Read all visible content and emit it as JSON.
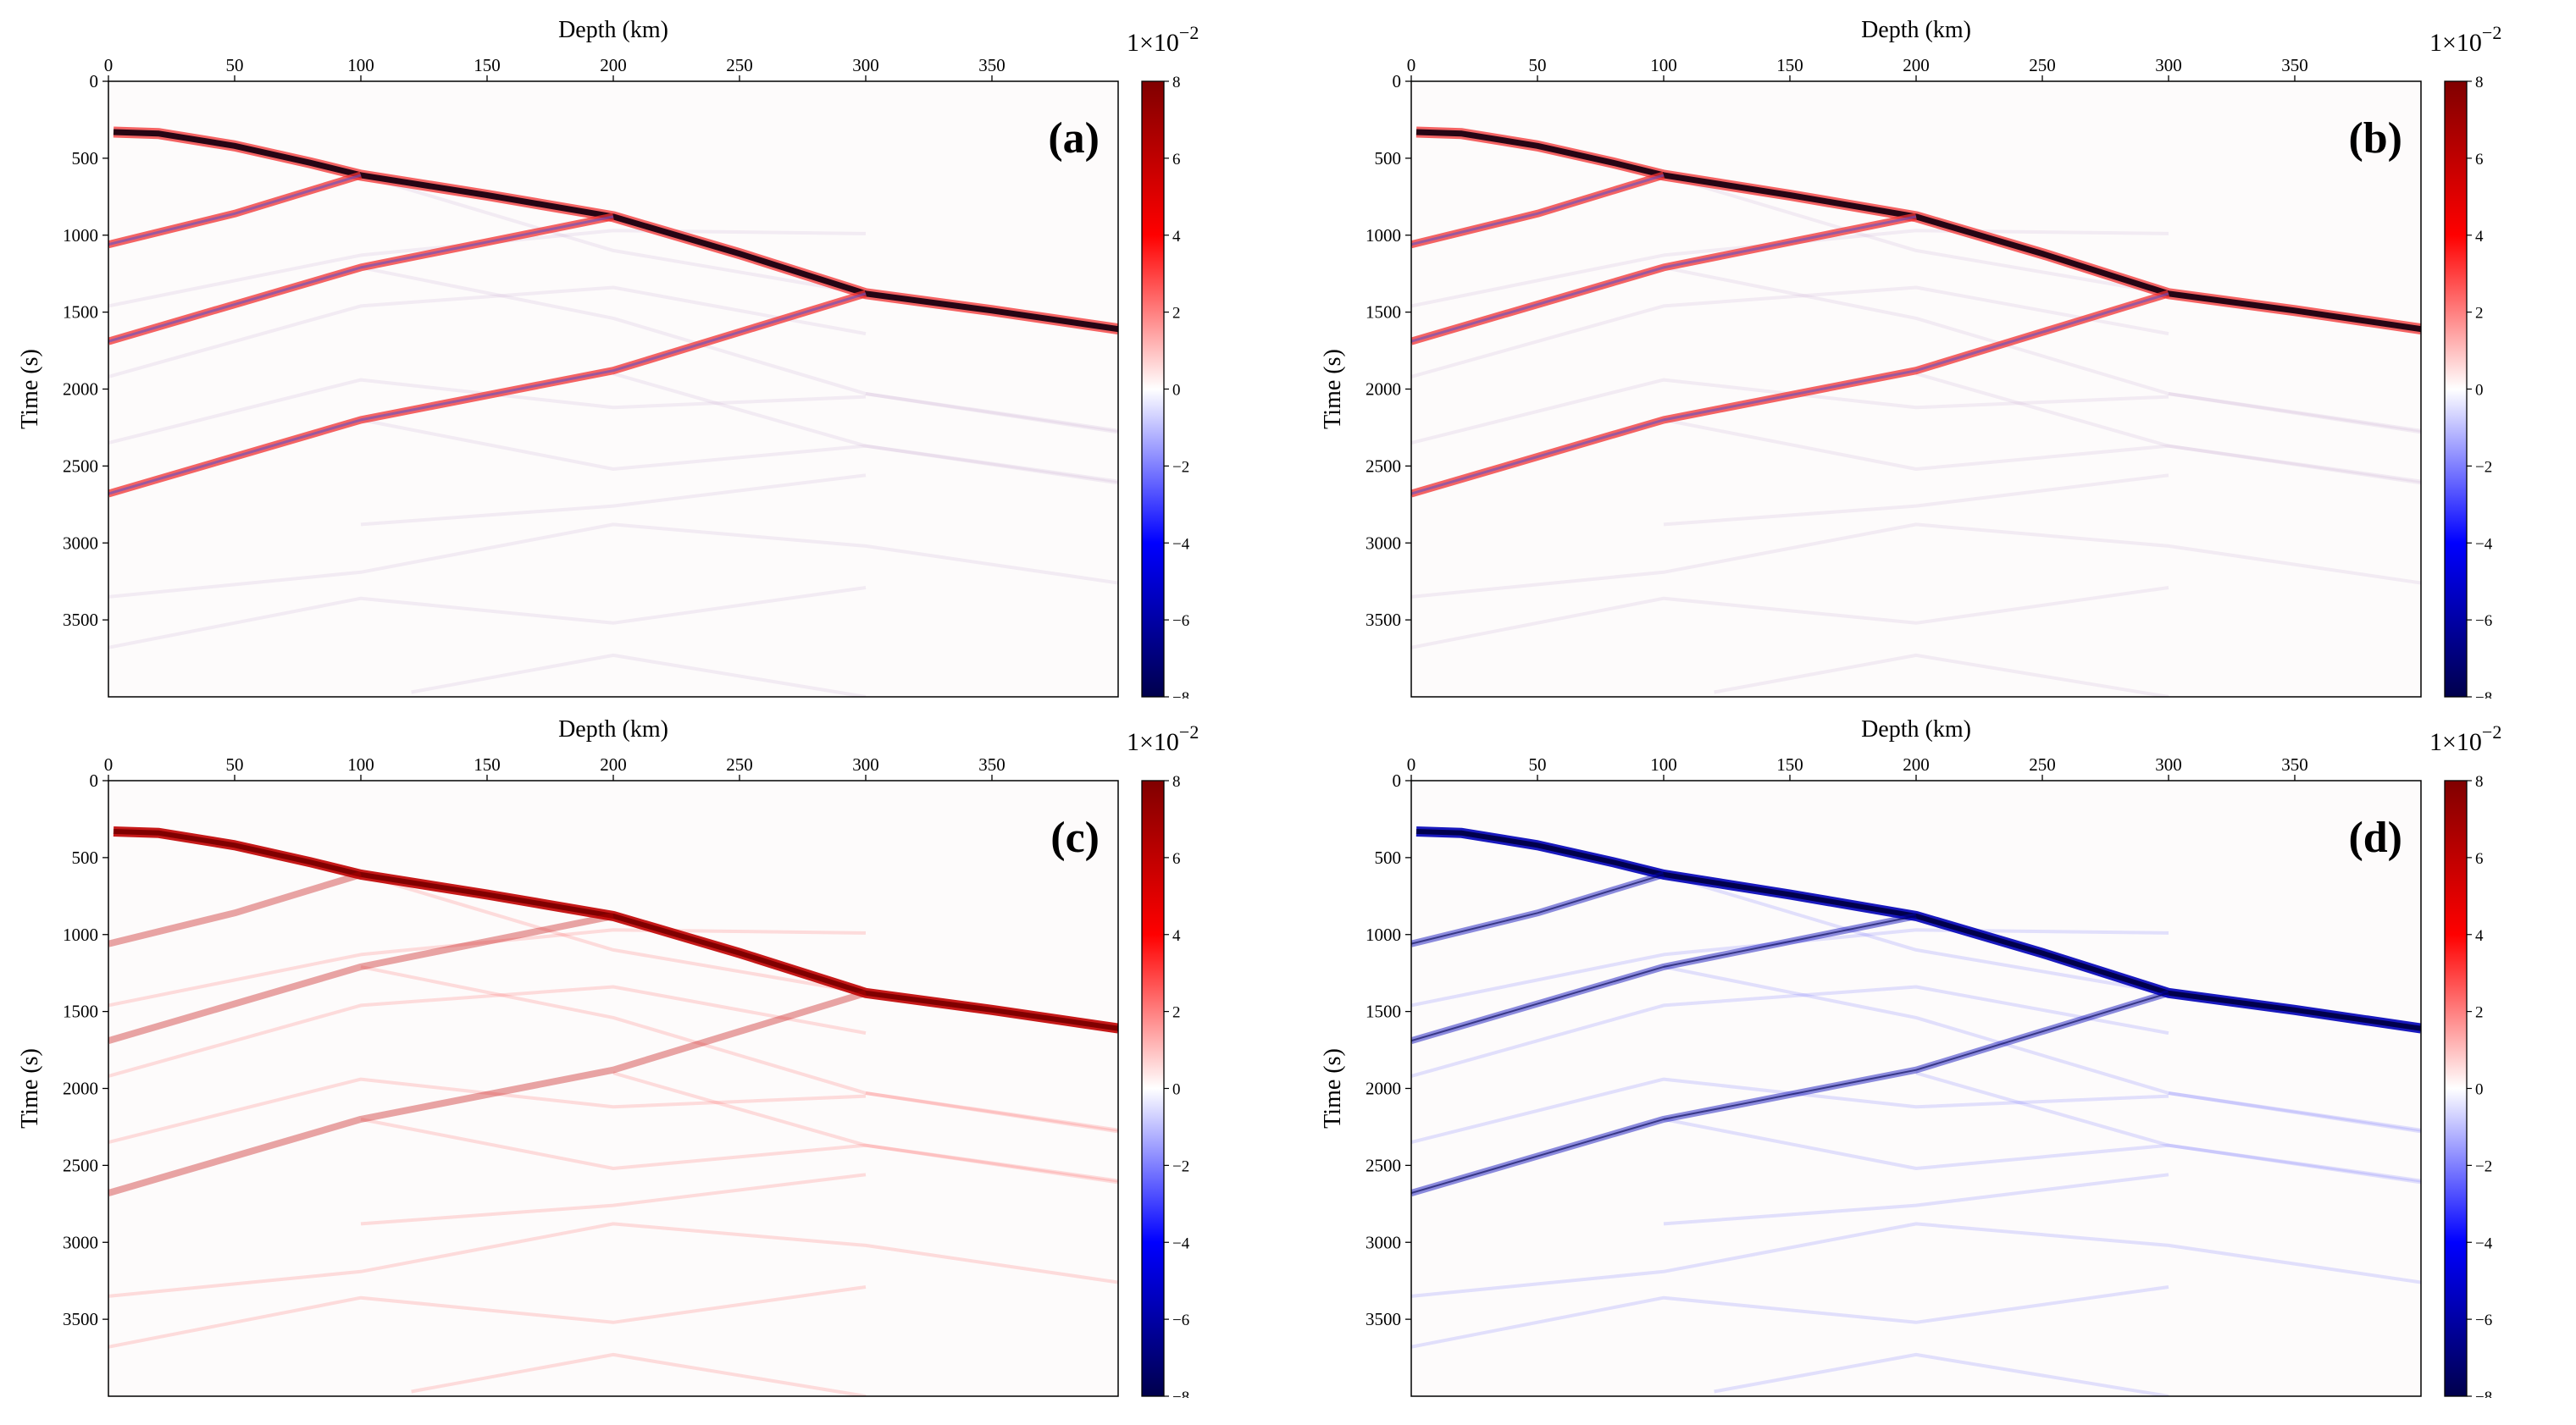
{
  "figure": {
    "colormap": {
      "name": "seismic",
      "stops": [
        "#00004c",
        "#0000ff",
        "#ffffff",
        "#ff0000",
        "#800000"
      ]
    },
    "colorbar": {
      "scale_prefix": "1×10",
      "scale_exponent": "−2",
      "ticks": [
        8,
        6,
        4,
        2,
        0,
        -2,
        -4,
        -6,
        -8
      ],
      "tick_labels": [
        "8",
        "6",
        "4",
        "2",
        "0",
        "−2",
        "−4",
        "−6",
        "−8"
      ],
      "range": [
        -8,
        8
      ]
    }
  },
  "chart_data": [
    {
      "type": "heatmap",
      "panel_label": "(a)",
      "xlabel": "Depth (km)",
      "ylabel": "Time (s)",
      "xlim": [
        0,
        400
      ],
      "ylim": [
        4000,
        0
      ],
      "xticks": [
        0,
        50,
        100,
        150,
        200,
        250,
        300,
        350
      ],
      "yticks": [
        0,
        500,
        1000,
        1500,
        2000,
        2500,
        3000,
        3500
      ],
      "color_mode": "bipolar",
      "main_intensity": 1.0,
      "ghost_intensity": 0.22
    },
    {
      "type": "heatmap",
      "panel_label": "(b)",
      "xlabel": "Depth (km)",
      "ylabel": "Time (s)",
      "xlim": [
        0,
        400
      ],
      "ylim": [
        4000,
        0
      ],
      "xticks": [
        0,
        50,
        100,
        150,
        200,
        250,
        300,
        350
      ],
      "yticks": [
        0,
        500,
        1000,
        1500,
        2000,
        2500,
        3000,
        3500
      ],
      "color_mode": "bipolar",
      "main_intensity": 1.0,
      "ghost_intensity": 0.22
    },
    {
      "type": "heatmap",
      "panel_label": "(c)",
      "xlabel": "Depth (km)",
      "ylabel": "Time (s)",
      "xlim": [
        0,
        400
      ],
      "ylim": [
        4000,
        0
      ],
      "xticks": [
        0,
        50,
        100,
        150,
        200,
        250,
        300,
        350
      ],
      "yticks": [
        0,
        500,
        1000,
        1500,
        2000,
        2500,
        3000,
        3500
      ],
      "color_mode": "positive",
      "main_intensity": 0.8,
      "ghost_intensity": 0.18
    },
    {
      "type": "heatmap",
      "panel_label": "(d)",
      "xlabel": "Depth (km)",
      "ylabel": "Time (s)",
      "xlim": [
        0,
        400
      ],
      "ylim": [
        4000,
        0
      ],
      "xticks": [
        0,
        50,
        100,
        150,
        200,
        250,
        300,
        350
      ],
      "yticks": [
        0,
        500,
        1000,
        1500,
        2000,
        2500,
        3000,
        3500
      ],
      "color_mode": "negative",
      "main_intensity": 0.85,
      "ghost_intensity": 0.18
    }
  ],
  "wavefield_paths": {
    "main": [
      [
        [
          2,
          330
        ],
        [
          20,
          340
        ],
        [
          50,
          420
        ],
        [
          80,
          530
        ],
        [
          100,
          610
        ],
        [
          150,
          740
        ],
        [
          200,
          880
        ],
        [
          250,
          1120
        ],
        [
          300,
          1380
        ],
        [
          350,
          1490
        ],
        [
          400,
          1610
        ]
      ],
      [
        [
          0,
          1060
        ],
        [
          50,
          860
        ],
        [
          100,
          610
        ]
      ],
      [
        [
          0,
          1690
        ],
        [
          100,
          1210
        ],
        [
          200,
          880
        ]
      ],
      [
        [
          0,
          2680
        ],
        [
          100,
          2200
        ],
        [
          200,
          1880
        ],
        [
          300,
          1380
        ]
      ]
    ],
    "ghost": [
      [
        [
          100,
          610
        ],
        [
          200,
          1100
        ],
        [
          300,
          1380
        ]
      ],
      [
        [
          100,
          1210
        ],
        [
          200,
          1540
        ],
        [
          300,
          2030
        ],
        [
          400,
          2270
        ]
      ],
      [
        [
          100,
          2200
        ],
        [
          200,
          2520
        ],
        [
          300,
          2370
        ],
        [
          400,
          2600
        ]
      ],
      [
        [
          0,
          1460
        ],
        [
          100,
          1130
        ],
        [
          200,
          970
        ],
        [
          300,
          990
        ]
      ],
      [
        [
          0,
          1920
        ],
        [
          100,
          1460
        ],
        [
          200,
          1340
        ],
        [
          300,
          1640
        ]
      ],
      [
        [
          0,
          2350
        ],
        [
          100,
          1940
        ],
        [
          200,
          2120
        ],
        [
          300,
          2050
        ]
      ],
      [
        [
          300,
          2030
        ],
        [
          400,
          2280
        ]
      ],
      [
        [
          200,
          1900
        ],
        [
          300,
          2370
        ],
        [
          400,
          2610
        ]
      ],
      [
        [
          0,
          3350
        ],
        [
          100,
          3190
        ],
        [
          200,
          2880
        ],
        [
          300,
          3020
        ],
        [
          400,
          3260
        ]
      ],
      [
        [
          0,
          3680
        ],
        [
          100,
          3360
        ],
        [
          200,
          3520
        ],
        [
          300,
          3290
        ]
      ],
      [
        [
          100,
          2880
        ],
        [
          200,
          2760
        ],
        [
          300,
          2560
        ]
      ],
      [
        [
          120,
          3970
        ],
        [
          200,
          3730
        ],
        [
          300,
          4000
        ]
      ]
    ]
  }
}
